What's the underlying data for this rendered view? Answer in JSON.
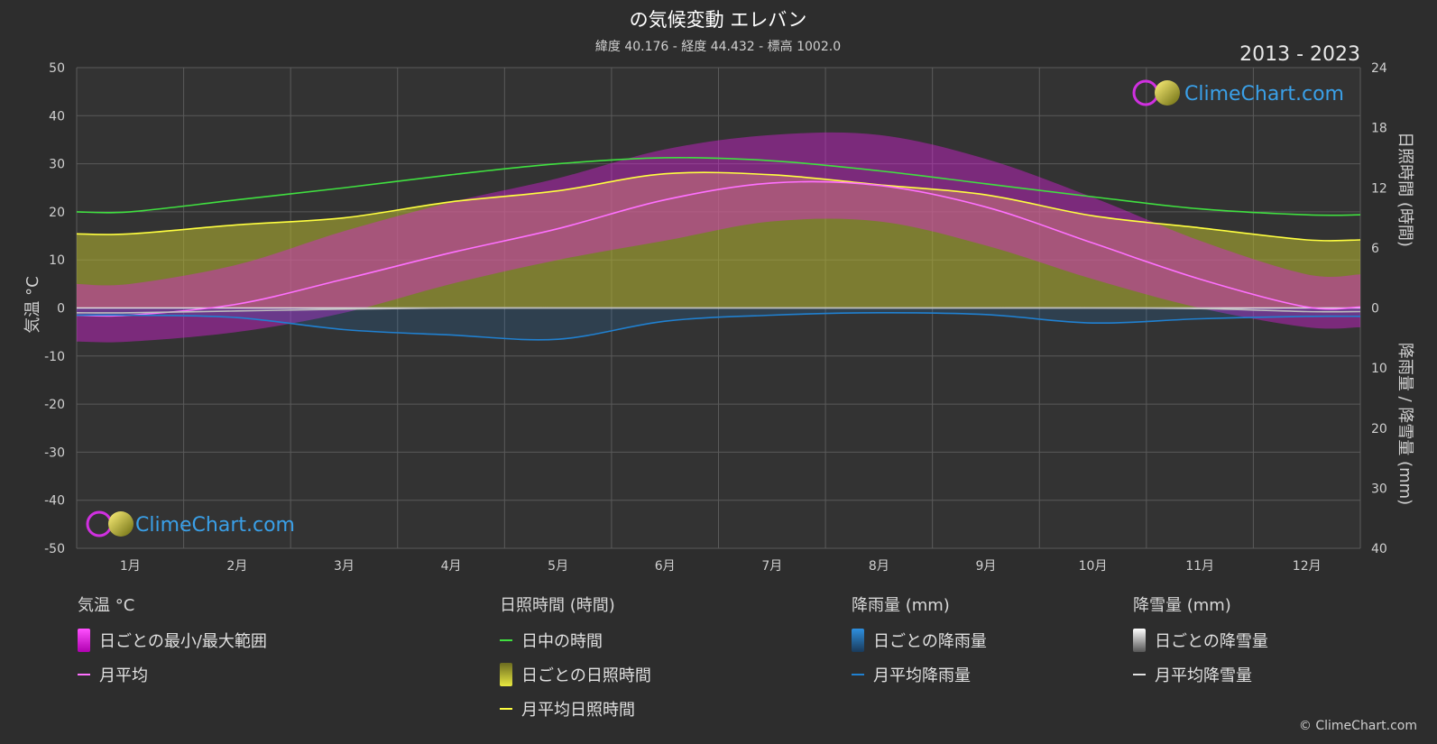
{
  "title": "の気候変動 エレバン",
  "subtitle": "緯度 40.176 - 経度 44.432 - 標高 1002.0",
  "year_range": "2013 - 2023",
  "logo_text": "ClimeChart.com",
  "credit": "© ClimeChart.com",
  "colors": {
    "background": "#2d2d2d",
    "temp_range": "#e020e0",
    "temp_avg": "#ff70ff",
    "daylight": "#40e040",
    "sunshine_fill": "#b8b830",
    "sunshine_avg": "#ffff40",
    "rain": "#2080d0",
    "snow": "#bdbdbd"
  },
  "chart_data": {
    "type": "line",
    "categories": [
      "1月",
      "2月",
      "3月",
      "4月",
      "5月",
      "6月",
      "7月",
      "8月",
      "9月",
      "10月",
      "11月",
      "12月"
    ],
    "y_left": {
      "label": "気温 °C",
      "range": [
        -50,
        50
      ],
      "ticks": [
        "50",
        "40",
        "30",
        "20",
        "10",
        "0",
        "-10",
        "-20",
        "-30",
        "-40",
        "-50"
      ]
    },
    "y_right_top": {
      "label": "日照時間 (時間)",
      "range": [
        0,
        24
      ],
      "ticks": [
        "24",
        "18",
        "12",
        "6",
        "0"
      ]
    },
    "y_right_bottom": {
      "label": "降雨量 / 降雪量 (mm)",
      "range": [
        0,
        40
      ],
      "ticks": [
        "10",
        "20",
        "30",
        "40"
      ]
    },
    "grid": true,
    "series": [
      {
        "name": "日中の時間",
        "axis": "sunshine",
        "values": [
          9.6,
          10.8,
          12.0,
          13.3,
          14.4,
          15.0,
          14.7,
          13.7,
          12.4,
          11.1,
          9.9,
          9.3
        ]
      },
      {
        "name": "月平均日照時間",
        "axis": "sunshine",
        "values": [
          7.4,
          8.3,
          9.0,
          10.6,
          11.7,
          13.4,
          13.3,
          12.3,
          11.3,
          9.2,
          8.0,
          6.8
        ]
      },
      {
        "name": "月平均",
        "axis": "temperature",
        "values": [
          -1.5,
          0.8,
          6.0,
          11.5,
          16.5,
          22.5,
          26.0,
          25.5,
          21.0,
          13.5,
          6.0,
          0.2
        ]
      },
      {
        "name": "日ごとの最小/最大範囲",
        "axis": "temperature",
        "min": [
          -7,
          -5,
          -1,
          5,
          10,
          14,
          18,
          18,
          13,
          6,
          0,
          -4
        ],
        "max": [
          5,
          9,
          16,
          22,
          27,
          33,
          36,
          36,
          31,
          23,
          14,
          7
        ]
      },
      {
        "name": "月平均降雨量",
        "axis": "precipitation",
        "values": [
          1.2,
          1.6,
          3.6,
          4.5,
          5.2,
          2.2,
          1.2,
          0.8,
          1.1,
          2.5,
          1.8,
          1.4
        ]
      },
      {
        "name": "月平均降雪量",
        "axis": "precipitation",
        "values": [
          0.8,
          0.5,
          0.2,
          0,
          0,
          0,
          0,
          0,
          0,
          0,
          0.1,
          0.6
        ]
      }
    ]
  },
  "legend": {
    "temperature": {
      "header": "気温 °C",
      "items": [
        "日ごとの最小/最大範囲",
        "月平均"
      ]
    },
    "sunshine": {
      "header": "日照時間 (時間)",
      "items": [
        "日中の時間",
        "日ごとの日照時間",
        "月平均日照時間"
      ]
    },
    "rain": {
      "header": "降雨量 (mm)",
      "items": [
        "日ごとの降雨量",
        "月平均降雨量"
      ]
    },
    "snow": {
      "header": "降雪量 (mm)",
      "items": [
        "日ごとの降雪量",
        "月平均降雪量"
      ]
    }
  }
}
